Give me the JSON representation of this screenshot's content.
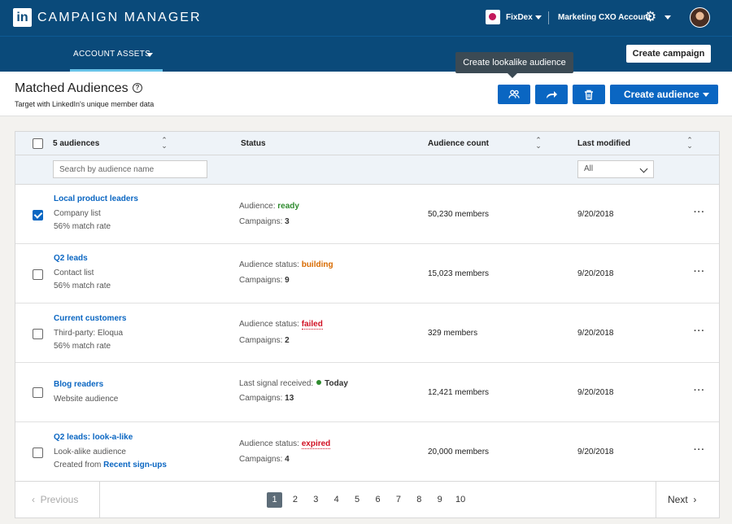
{
  "topbar": {
    "brand": "CAMPAIGN MANAGER",
    "account": "FixDex",
    "account2": "Marketing CXO Account"
  },
  "subnav": {
    "tab": "ACCOUNT ASSETS",
    "create_campaign": "Create campaign"
  },
  "header": {
    "title": "Matched Audiences",
    "subtitle": "Target with LinkedIn's unique member data",
    "tooltip": "Create lookalike audience",
    "create_audience": "Create audience"
  },
  "table": {
    "col_audiences": "5 audiences",
    "col_status": "Status",
    "col_count": "Audience count",
    "col_modified": "Last modified",
    "search_placeholder": "Search by audience name",
    "filter_value": "All",
    "rows": [
      {
        "name": "Local product leaders",
        "line1": "Company list",
        "line2": "56% match rate",
        "status_label": "Audience:",
        "status_value": "ready",
        "campaigns_label": "Campaigns:",
        "campaigns": "3",
        "count": "50,230 members",
        "date": "9/20/2018",
        "checked": true
      },
      {
        "name": "Q2 leads",
        "line1": "Contact list",
        "line2": "56% match rate",
        "status_label": "Audience status:",
        "status_value": "building",
        "campaigns_label": "Campaigns:",
        "campaigns": "9",
        "count": "15,023 members",
        "date": "9/20/2018"
      },
      {
        "name": "Current customers",
        "line1": "Third-party: Eloqua",
        "line2": "56% match rate",
        "status_label": "Audience status:",
        "status_value": "failed",
        "campaigns_label": "Campaigns:",
        "campaigns": "2",
        "count": "329 members",
        "date": "9/20/2018"
      },
      {
        "name": "Blog readers",
        "line1": "Website audience",
        "status_label": "Last signal received:",
        "status_value": "Today",
        "campaigns_label": "Campaigns:",
        "campaigns": "13",
        "count": "12,421 members",
        "date": "9/20/2018"
      },
      {
        "name": "Q2 leads: look-a-like",
        "line1": "Look-alike audience",
        "line2_prefix": "Created from",
        "line2_link": "Recent sign-ups",
        "status_label": "Audience status:",
        "status_value": "expired",
        "campaigns_label": "Campaigns:",
        "campaigns": "4",
        "count": "20,000 members",
        "date": "9/20/2018"
      }
    ],
    "more": "···"
  },
  "pager": {
    "prev": "Previous",
    "next": "Next",
    "pages": [
      "1",
      "2",
      "3",
      "4",
      "5",
      "6",
      "7",
      "8",
      "9",
      "10"
    ],
    "current": "1"
  },
  "icons": {
    "help": "?",
    "gear": "⚙",
    "prev_chev": "‹",
    "next_chev": "›"
  },
  "colors": {
    "brand_blue": "#0a4a7a",
    "primary": "#0a66c2",
    "ready": "#2e8b2e",
    "building": "#d86a00",
    "failed": "#d11124"
  }
}
